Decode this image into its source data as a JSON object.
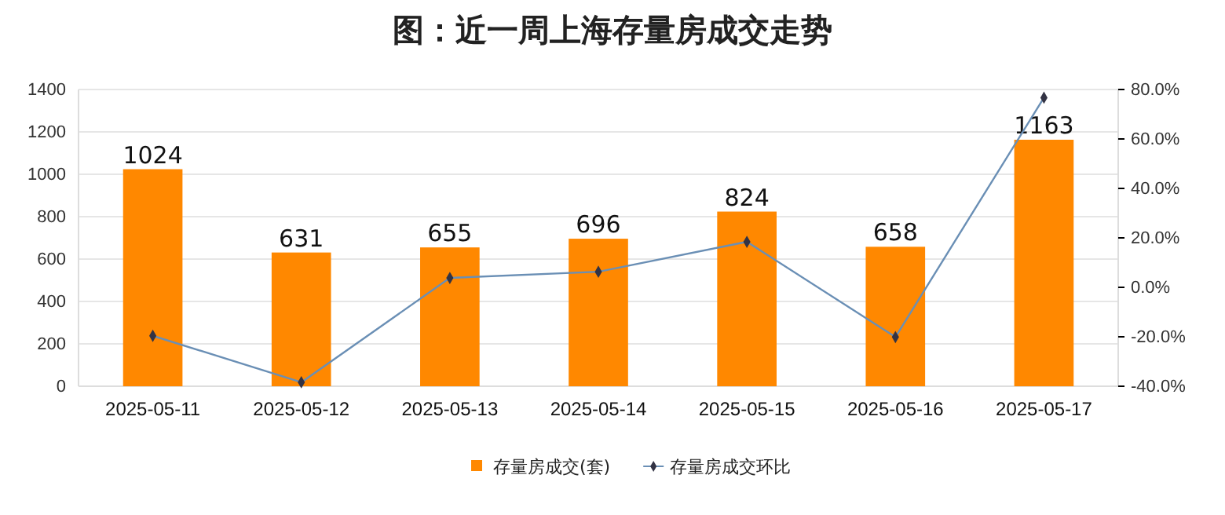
{
  "chart_data": {
    "type": "bar",
    "title": "图：近一周上海存量房成交走势",
    "categories": [
      "2025-05-11",
      "2025-05-12",
      "2025-05-13",
      "2025-05-14",
      "2025-05-15",
      "2025-05-16",
      "2025-05-17"
    ],
    "series": [
      {
        "name": "存量房成交(套)",
        "color": "#ff8800",
        "values": [
          1024,
          631,
          655,
          696,
          824,
          658,
          1163
        ],
        "value_labels": [
          "1024",
          "631",
          "655",
          "696",
          "824",
          "658",
          "1163"
        ]
      },
      {
        "name": "存量房成交环比",
        "type": "line",
        "axis": "y2",
        "color": "#6a8fb5",
        "marker": "diamond",
        "values": [
          -19.6,
          -38.4,
          3.8,
          6.3,
          18.4,
          -20.1,
          76.7
        ]
      }
    ],
    "ylim": [
      0,
      1400
    ],
    "yticks": [
      0,
      200,
      400,
      600,
      800,
      1000,
      1200,
      1400
    ],
    "y2lim": [
      -40,
      80
    ],
    "y2ticks": [
      {
        "value": -40,
        "label": "-40.0%"
      },
      {
        "value": -20,
        "label": "-20.0%"
      },
      {
        "value": 0,
        "label": "0.0%"
      },
      {
        "value": 20,
        "label": "20.0%"
      },
      {
        "value": 40,
        "label": "40.0%"
      },
      {
        "value": 60,
        "label": "60.0%"
      },
      {
        "value": 80,
        "label": "80.0%"
      }
    ],
    "grid": "y",
    "legend": "bottom"
  }
}
